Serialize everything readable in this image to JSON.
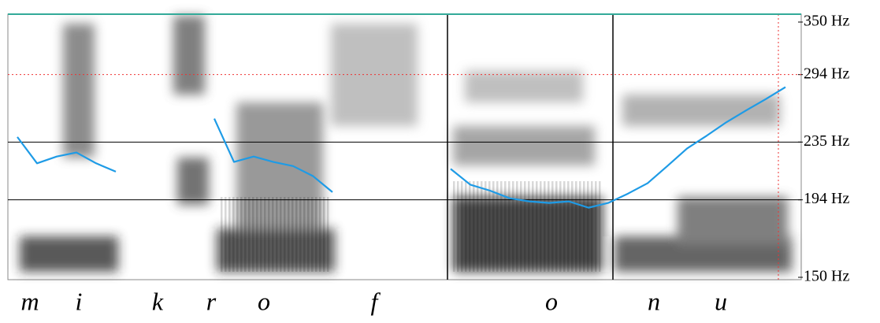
{
  "chart_data": {
    "type": "line",
    "segment_labels": [
      "m",
      "i",
      "k",
      "r",
      "o",
      "f",
      "o",
      "n",
      "u"
    ],
    "series": [
      {
        "name": "pitch",
        "color": "#1e9be6",
        "values": [
          239,
          219,
          224,
          227,
          219,
          213,
          null,
          null,
          null,
          null,
          254,
          220,
          224,
          220,
          217,
          210,
          199,
          null,
          null,
          null,
          null,
          null,
          215,
          204,
          200,
          195,
          193,
          192,
          193,
          189,
          192,
          198,
          205,
          217,
          230,
          240,
          251,
          261,
          271,
          282
        ]
      }
    ],
    "ylim": [
      150,
      350
    ],
    "log_scale": true,
    "yticks": [
      {
        "value": 150,
        "label": "150 Hz"
      },
      {
        "value": 194,
        "label": "194 Hz"
      },
      {
        "value": 235,
        "label": "235 Hz"
      },
      {
        "value": 294,
        "label": "294 Hz"
      },
      {
        "value": 350,
        "label": "350 Hz"
      }
    ]
  }
}
